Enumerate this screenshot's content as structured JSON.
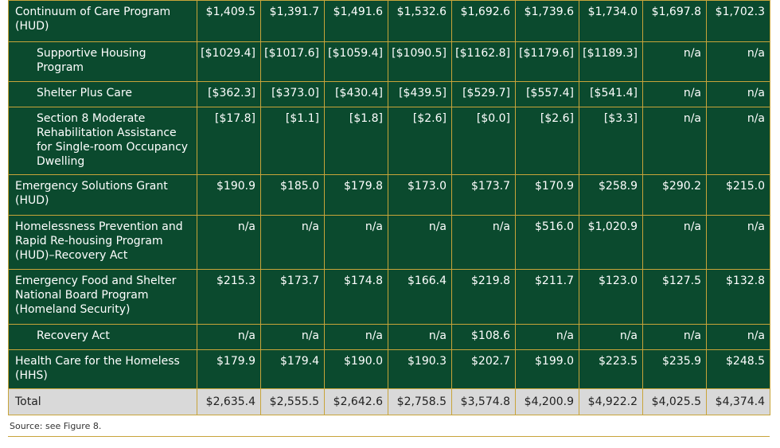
{
  "table": {
    "rows": [
      {
        "label": "Continuum of Care Program (HUD)",
        "values": [
          "$1,409.5",
          "$1,391.7",
          "$1,491.6",
          "$1,532.6",
          "$1,692.6",
          "$1,739.6",
          "$1,734.0",
          "$1,697.8",
          "$1,702.3"
        ]
      },
      {
        "label": "Supportive Housing Program",
        "values": [
          "[$1029.4]",
          "[$1017.6]",
          "[$1059.4]",
          "[$1090.5]",
          "[$1162.8]",
          "[$1179.6]",
          "[$1189.3]",
          "n/a",
          "n/a"
        ]
      },
      {
        "label": "Shelter Plus Care",
        "values": [
          "[$362.3]",
          "[$373.0]",
          "[$430.4]",
          "[$439.5]",
          "[$529.7]",
          "[$557.4]",
          "[$541.4]",
          "n/a",
          "n/a"
        ]
      },
      {
        "label": "Section 8 Moderate Rehabilitation Assistance for Single-room Occupancy Dwelling",
        "values": [
          "[$17.8]",
          "[$1.1]",
          "[$1.8]",
          "[$2.6]",
          "[$0.0]",
          "[$2.6]",
          "[$3.3]",
          "n/a",
          "n/a"
        ]
      },
      {
        "label": "Emergency Solutions Grant (HUD)",
        "values": [
          "$190.9",
          "$185.0",
          "$179.8",
          "$173.0",
          "$173.7",
          "$170.9",
          "$258.9",
          "$290.2",
          "$215.0"
        ]
      },
      {
        "label": "Homelessness Prevention and Rapid Re-housing Program (HUD)–Recovery Act",
        "values": [
          "n/a",
          "n/a",
          "n/a",
          "n/a",
          "n/a",
          "$516.0",
          "$1,020.9",
          "n/a",
          "n/a"
        ]
      },
      {
        "label": "Emergency Food and Shelter National Board Program (Homeland Security)",
        "values": [
          "$215.3",
          "$173.7",
          "$174.8",
          "$166.4",
          "$219.8",
          "$211.7",
          "$123.0",
          "$127.5",
          "$132.8"
        ]
      },
      {
        "label": "Recovery Act",
        "values": [
          "n/a",
          "n/a",
          "n/a",
          "n/a",
          "$108.6",
          "n/a",
          "n/a",
          "n/a",
          "n/a"
        ]
      },
      {
        "label": "Health Care for the Homeless (HHS)",
        "values": [
          "$179.9",
          "$179.4",
          "$190.0",
          "$190.3",
          "$202.7",
          "$199.0",
          "$223.5",
          "$235.9",
          "$248.5"
        ]
      }
    ],
    "total": {
      "label": "Total",
      "values": [
        "$2,635.4",
        "$2,555.5",
        "$2,642.6",
        "$2,758.5",
        "$3,574.8",
        "$4,200.9",
        "$4,922.2",
        "$4,025.5",
        "$4,374.4"
      ]
    }
  },
  "source": "Source: see Figure 8."
}
